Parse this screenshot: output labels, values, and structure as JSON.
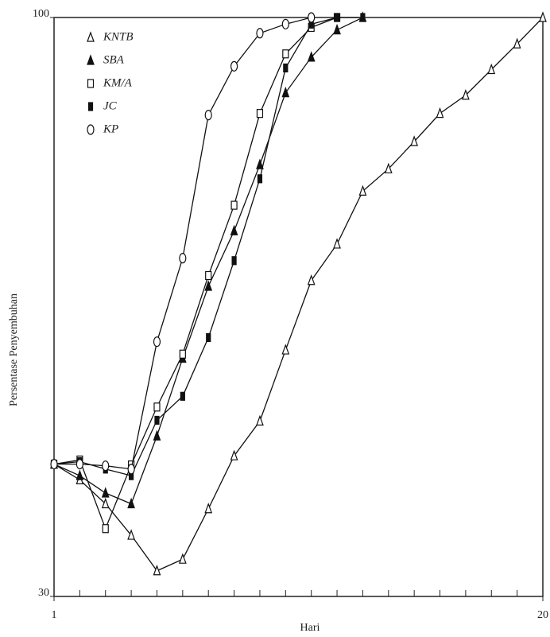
{
  "chart_data": {
    "type": "line",
    "x_label": "Hari",
    "y_label": "Persentase Penyembuhan",
    "x": [
      1,
      2,
      3,
      4,
      5,
      6,
      7,
      8,
      9,
      10,
      11,
      12,
      13,
      14,
      15,
      16,
      17,
      18,
      19,
      20
    ],
    "xlim": [
      1,
      20
    ],
    "xticks": [
      1,
      20
    ],
    "ylim": [
      30,
      100
    ],
    "yticks": [
      30,
      100
    ],
    "series": [
      {
        "name": "KNTB",
        "color": "#111111",
        "marker": "triangle-open",
        "values": [
          46,
          44.1,
          41.2,
          37.4,
          33.1,
          34.5,
          40.6,
          47,
          51.2,
          59.8,
          68.2,
          72.6,
          79,
          81.7,
          85,
          88.4,
          90.6,
          93.7,
          96.8,
          100
        ]
      },
      {
        "name": "SBA",
        "color": "#111111",
        "marker": "triangle-filled",
        "values": [
          46,
          44.6,
          42.5,
          41.2,
          49.4,
          58.8,
          67.5,
          74.2,
          82.2,
          90.9,
          95.2,
          98.5,
          100,
          null,
          null,
          null,
          null,
          null,
          null,
          null
        ]
      },
      {
        "name": "KM/A",
        "color": "#111111",
        "marker": "square-open",
        "values": [
          46,
          46.5,
          38.2,
          45.9,
          52.9,
          59.3,
          68.8,
          77.3,
          88.4,
          95.6,
          98.8,
          100,
          null,
          null,
          null,
          null,
          null,
          null,
          null,
          null
        ]
      },
      {
        "name": "JC",
        "color": "#111111",
        "marker": "bar-filled",
        "values": [
          46,
          46.3,
          45.4,
          44.6,
          51.3,
          54.2,
          61.3,
          70.6,
          80.5,
          93.9,
          99.2,
          100,
          100,
          null,
          null,
          null,
          null,
          null,
          null,
          null
        ]
      },
      {
        "name": "KP",
        "color": "#111111",
        "marker": "circle-open",
        "values": [
          46,
          46,
          45.8,
          45.4,
          60.8,
          70.9,
          88.2,
          94.1,
          98.1,
          99.2,
          100,
          null,
          null,
          null,
          null,
          null,
          null,
          null,
          null,
          null
        ]
      }
    ]
  }
}
